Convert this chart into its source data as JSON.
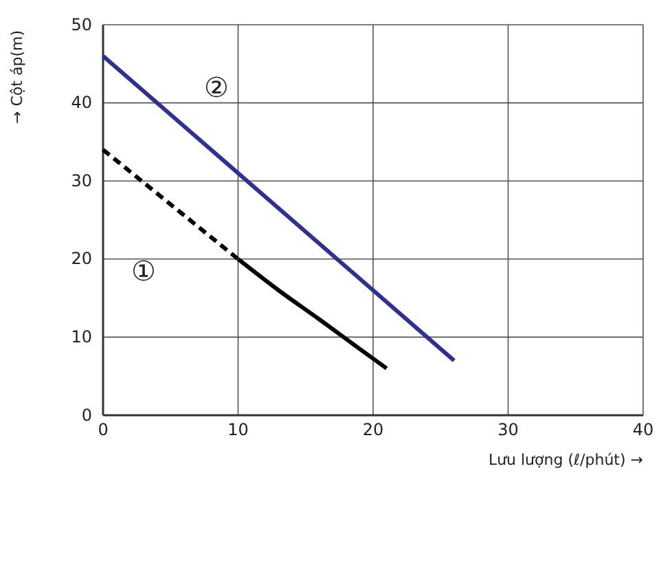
{
  "chart_data": {
    "type": "line",
    "xlabel": "Lưu lượng (ℓ/phút) →",
    "ylabel": "→ Cột áp(m)",
    "xlim": [
      0,
      40
    ],
    "ylim": [
      0,
      50
    ],
    "xticks": [
      0,
      10,
      20,
      30,
      40
    ],
    "yticks": [
      0,
      10,
      20,
      30,
      40,
      50
    ],
    "grid": true,
    "marker": "none",
    "series": [
      {
        "color": "#000000",
        "line_style": "dashed",
        "x": [
          0,
          10
        ],
        "values": [
          34,
          20
        ]
      },
      {
        "color": "#000000",
        "line_style": "solid",
        "x": [
          10,
          13,
          16,
          19,
          21
        ],
        "values": [
          20,
          16,
          12.3,
          8.5,
          6
        ]
      },
      {
        "color": "#2e3192",
        "line_style": "solid",
        "x": [
          0,
          26
        ],
        "values": [
          46,
          7
        ]
      }
    ],
    "annotations": [
      "②",
      "①"
    ]
  }
}
